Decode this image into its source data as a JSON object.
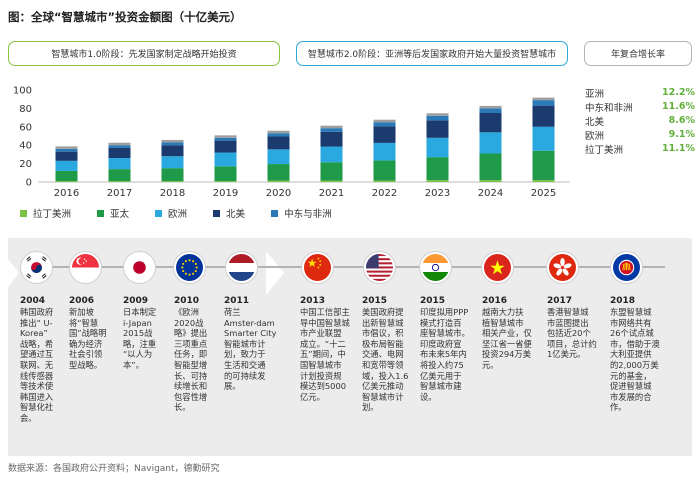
{
  "title": "图：全球“智慧城市”投资金额图（十亿美元）",
  "phases": {
    "phase1": "智慧城市1.0阶段：先发国家制定战略开始投资",
    "phase2": "智慧城市2.0阶段：亚洲等后发国家政府开始大量投资智慧城市",
    "cagr_title": "年复合增长率"
  },
  "colors": {
    "latam": "#7cc242",
    "asia": "#1f9a48",
    "europe": "#29a9df",
    "na": "#1b3b6f",
    "mea": "#2a7ab8"
  },
  "chart_data": {
    "type": "bar",
    "stacked": true,
    "categories": [
      "2016",
      "2017",
      "2018",
      "2019",
      "2020",
      "2021",
      "2022",
      "2023",
      "2024",
      "2025"
    ],
    "ylim": [
      0,
      100
    ],
    "yticks": [
      "0",
      "20",
      "40",
      "60",
      "80",
      "100"
    ],
    "grid": false,
    "legend_position": "bottom-left",
    "series": [
      {
        "name": "拉丁美洲",
        "values": [
          1,
          1,
          1,
          1,
          1.5,
          1.5,
          1.5,
          2,
          2,
          2
        ]
      },
      {
        "name": "亚太",
        "values": [
          11,
          13,
          14,
          16,
          18,
          20,
          22,
          25,
          29,
          32
        ]
      },
      {
        "name": "欧洲",
        "values": [
          11,
          12,
          13,
          15,
          16,
          17,
          19,
          21,
          23,
          26
        ]
      },
      {
        "name": "北美",
        "values": [
          10,
          11,
          12,
          13,
          14,
          16,
          18,
          19,
          21,
          23
        ]
      },
      {
        "name": "中东与非洲",
        "values": [
          3,
          3,
          3,
          3,
          3.5,
          4,
          4.5,
          5,
          5,
          6
        ]
      }
    ]
  },
  "cagr": [
    {
      "region": "亚洲",
      "value": "12.2%"
    },
    {
      "region": "中东和非洲",
      "value": "11.6%"
    },
    {
      "region": "北美",
      "value": "8.6%"
    },
    {
      "region": "欧洲",
      "value": "9.1%"
    },
    {
      "region": "拉丁美洲",
      "value": "11.1%"
    }
  ],
  "timeline": [
    {
      "year": "2004",
      "flag": "south-korea-flag-icon",
      "desc": "韩国政府\n推出“ U-\nKorea”\n战略，希\n望通过互\n联网、无\n线传感器\n等技术使\n韩国进入\n智慧化社\n会。"
    },
    {
      "year": "2006",
      "flag": "singapore-flag-icon",
      "desc": "新加坡\n将“智慧\n国”战略明\n确为经济\n社会引领\n型战略。"
    },
    {
      "year": "2009",
      "flag": "japan-flag-icon",
      "desc": "日本制定\ni-Japan\n2015战\n略，注重\n“以人为\n本”。"
    },
    {
      "year": "2010",
      "flag": "eu-flag-icon",
      "desc": "《欧洲\n2020战\n略》提出\n三项重点\n任务，即\n智能型增\n长、可持\n续增长和\n包容性增\n长。"
    },
    {
      "year": "2011",
      "flag": "netherlands-flag-icon",
      "desc": "荷兰\nAmster-dam\nSmarter City\n智能城市计\n划，致力于\n生活和交通\n的可持续发\n展。"
    },
    {
      "year": "2013",
      "flag": "china-flag-icon",
      "desc": "中国工信部主\n导中国智慧城\n市产业联盟\n成立。“十二\n五”期间，中\n国智慧城市\n计划投资规\n模达到5000\n亿元。"
    },
    {
      "year": "2015",
      "flag": "usa-flag-icon",
      "desc": "美国政府提\n出新智慧城\n市倡议，积\n极布局智能\n交通、电网\n和宽带等领\n域，投入1.6\n亿美元推动\n智慧城市计\n划。"
    },
    {
      "year": "2015",
      "flag": "india-flag-icon",
      "desc": "印度拟用PPP\n模式打造百\n座智慧城市。\n印度政府宣\n布未来5年内\n将投入约75\n亿美元用于\n智慧城市建\n设。"
    },
    {
      "year": "2016",
      "flag": "vietnam-flag-icon",
      "desc": "越南大力扶\n植智慧城市\n相关产业，仅\n坚江省一省便\n投资294万美\n元。"
    },
    {
      "year": "2017",
      "flag": "hongkong-flag-icon",
      "desc": "香港智慧城\n市蓝图提出\n包括近20个\n项目，总计约\n1亿美元。"
    },
    {
      "year": "2018",
      "flag": "asean-flag-icon",
      "desc": "东盟智慧城\n市网络共有\n26个试点城\n市，借助于澳\n大利亚提供\n的2,000万美\n元的基金，\n促进智慧城\n市发展的合\n作。"
    }
  ],
  "source": "数据来源：各国政府公开资料；Navigant，德勤研究"
}
